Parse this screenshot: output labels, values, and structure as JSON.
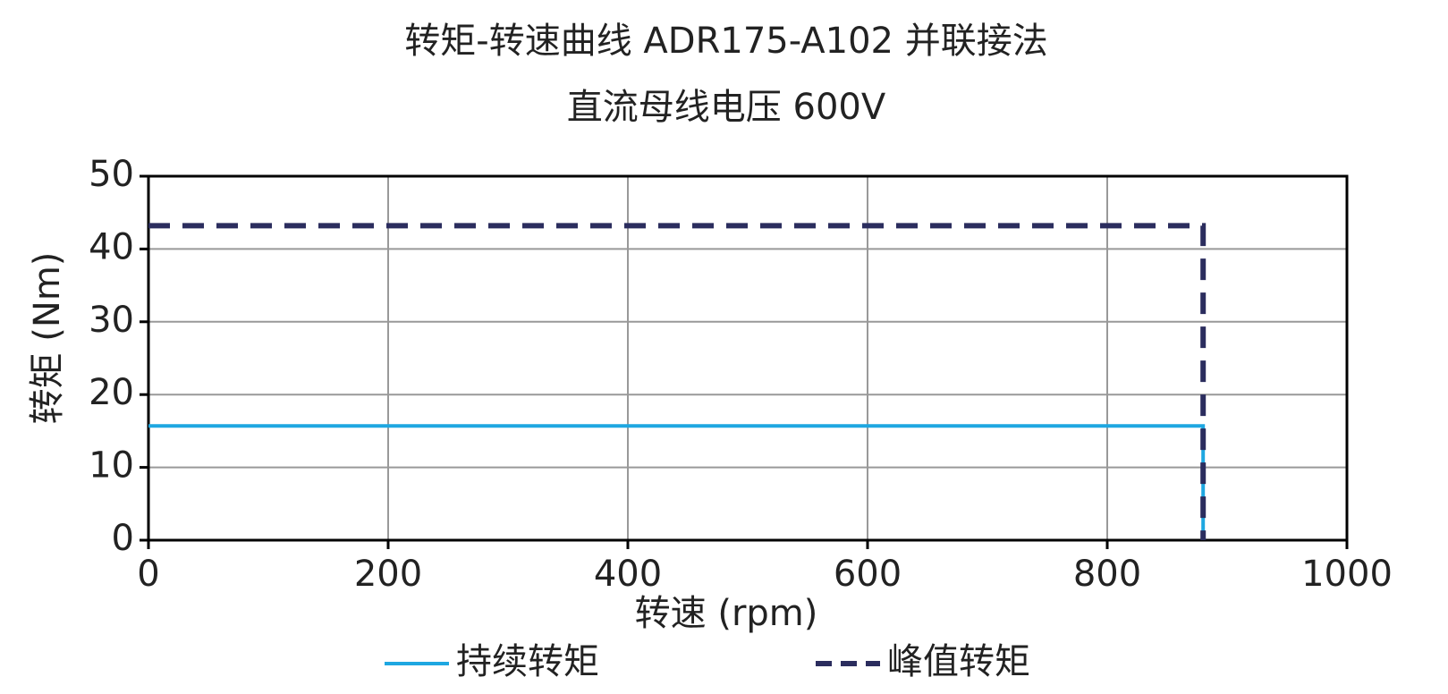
{
  "chart_data": {
    "type": "line",
    "title": "转矩-转速曲线 ADR175-A102 并联接法",
    "subtitle": "直流母线电压 600V",
    "x_label": "转速 (rpm)",
    "y_label": "转矩 (Nm)",
    "x": [
      0,
      880,
      880
    ],
    "series": [
      {
        "name": "持续转矩",
        "color": "#1ea7e1",
        "line_style": "solid",
        "values": [
          15.7,
          15.7,
          0
        ]
      },
      {
        "name": "峰值转矩",
        "color": "#2b2d5e",
        "line_style": "dashed",
        "values": [
          43.2,
          43.2,
          0
        ]
      }
    ],
    "xlim": [
      0,
      1000
    ],
    "xticks": [
      0,
      200,
      400,
      600,
      800,
      1000
    ],
    "ylim": [
      0,
      50
    ],
    "yticks": [
      0,
      10,
      20,
      30,
      40,
      50
    ],
    "grid": true,
    "legend": "bottom"
  }
}
